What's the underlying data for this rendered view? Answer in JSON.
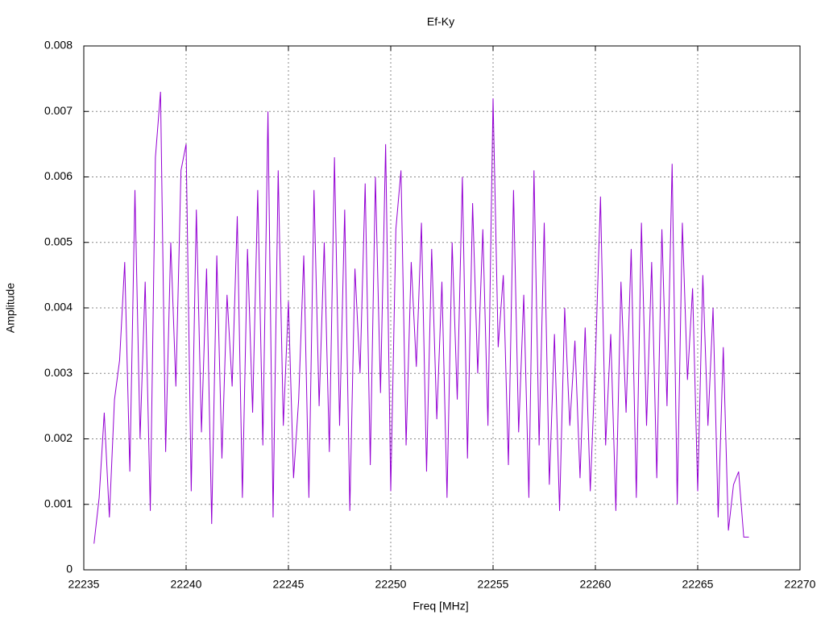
{
  "chart_data": {
    "type": "line",
    "title": "Ef-Ky",
    "x_label": "Freq [MHz]",
    "y_label": "Amplitude",
    "xlim": [
      22235,
      22270
    ],
    "xticks": [
      22235,
      22240,
      22245,
      22250,
      22255,
      22260,
      22265,
      22270
    ],
    "ylim": [
      0,
      0.008
    ],
    "yticks": [
      0,
      0.001,
      0.002,
      0.003,
      0.004,
      0.005,
      0.006,
      0.007,
      0.008
    ],
    "grid": true,
    "series": [
      {
        "color": "#9400d3",
        "x": [
          22235.5,
          22235.75,
          22236,
          22236.25,
          22236.5,
          22236.75,
          22237,
          22237.25,
          22237.5,
          22237.75,
          22238,
          22238.25,
          22238.5,
          22238.75,
          22239,
          22239.25,
          22239.5,
          22239.75,
          22240,
          22240.25,
          22240.5,
          22240.75,
          22241,
          22241.25,
          22241.5,
          22241.75,
          22242,
          22242.25,
          22242.5,
          22242.75,
          22243,
          22243.25,
          22243.5,
          22243.75,
          22244,
          22244.25,
          22244.5,
          22244.75,
          22245,
          22245.25,
          22245.5,
          22245.75,
          22246,
          22246.25,
          22246.5,
          22246.75,
          22247,
          22247.25,
          22247.5,
          22247.75,
          22248,
          22248.25,
          22248.5,
          22248.75,
          22249,
          22249.25,
          22249.5,
          22249.75,
          22250,
          22250.25,
          22250.5,
          22250.75,
          22251,
          22251.25,
          22251.5,
          22251.75,
          22252,
          22252.25,
          22252.5,
          22252.75,
          22253,
          22253.25,
          22253.5,
          22253.75,
          22254,
          22254.25,
          22254.5,
          22254.75,
          22255,
          22255.25,
          22255.5,
          22255.75,
          22256,
          22256.25,
          22256.5,
          22256.75,
          22257,
          22257.25,
          22257.5,
          22257.75,
          22258,
          22258.25,
          22258.5,
          22258.75,
          22259,
          22259.25,
          22259.5,
          22259.75,
          22260,
          22260.25,
          22260.5,
          22260.75,
          22261,
          22261.25,
          22261.5,
          22261.75,
          22262,
          22262.25,
          22262.5,
          22262.75,
          22263,
          22263.25,
          22263.5,
          22263.75,
          22264,
          22264.25,
          22264.5,
          22264.75,
          22265,
          22265.25,
          22265.5,
          22265.75,
          22266,
          22266.25,
          22266.5,
          22266.75,
          22267,
          22267.25,
          22267.5
        ],
        "values": [
          0.0004,
          0.0011,
          0.0024,
          0.0008,
          0.0026,
          0.0032,
          0.0047,
          0.0015,
          0.0058,
          0.002,
          0.0044,
          0.0009,
          0.0063,
          0.0073,
          0.0018,
          0.005,
          0.0028,
          0.0061,
          0.0065,
          0.0012,
          0.0055,
          0.0021,
          0.0046,
          0.0007,
          0.0048,
          0.0017,
          0.0042,
          0.0028,
          0.0054,
          0.0011,
          0.0049,
          0.0024,
          0.0058,
          0.0019,
          0.007,
          0.0008,
          0.0061,
          0.0022,
          0.0041,
          0.0014,
          0.0026,
          0.0048,
          0.0011,
          0.0058,
          0.0025,
          0.005,
          0.0018,
          0.0063,
          0.0022,
          0.0055,
          0.0009,
          0.0046,
          0.003,
          0.0059,
          0.0016,
          0.006,
          0.0027,
          0.0065,
          0.0012,
          0.0052,
          0.0061,
          0.0019,
          0.0047,
          0.0031,
          0.0053,
          0.0015,
          0.0049,
          0.0023,
          0.0044,
          0.0011,
          0.005,
          0.0026,
          0.006,
          0.0017,
          0.0056,
          0.003,
          0.0052,
          0.0022,
          0.0072,
          0.0034,
          0.0045,
          0.0016,
          0.0058,
          0.0021,
          0.0042,
          0.0011,
          0.0061,
          0.0019,
          0.0053,
          0.0013,
          0.0036,
          0.0009,
          0.004,
          0.0022,
          0.0035,
          0.0014,
          0.0037,
          0.0012,
          0.0032,
          0.0057,
          0.0019,
          0.0036,
          0.0009,
          0.0044,
          0.0024,
          0.0049,
          0.0011,
          0.0053,
          0.0022,
          0.0047,
          0.0014,
          0.0052,
          0.0025,
          0.0062,
          0.001,
          0.0053,
          0.0029,
          0.0043,
          0.0012,
          0.0045,
          0.0022,
          0.004,
          0.0008,
          0.0034,
          0.0006,
          0.0013,
          0.0015,
          0.0005,
          0.0005
        ]
      }
    ]
  }
}
